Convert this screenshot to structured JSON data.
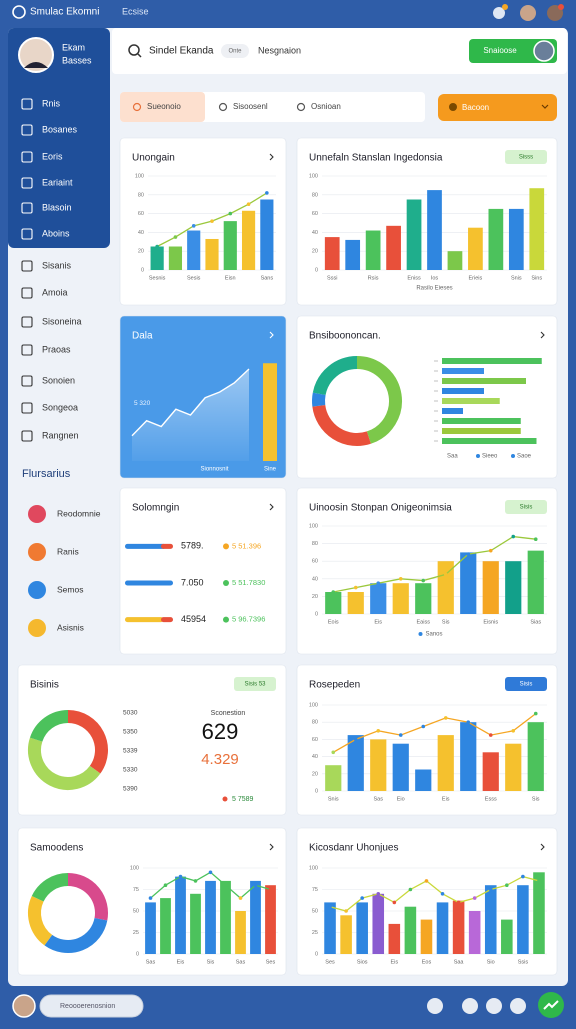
{
  "app": {
    "title": "Smulac Ekomni",
    "subtitle": "Ecsise"
  },
  "profile": {
    "name": "Ekam",
    "role": "Basses"
  },
  "nav": [
    "Rnis",
    "Bosanes",
    "Eoris",
    "Eariaint",
    "Blasoin",
    "Aboins",
    "Sisanis",
    "Amoia",
    "Sisoneina",
    "Praoas",
    "Sonoien",
    "Songeoa",
    "Rangnen"
  ],
  "section": "Flursarius",
  "shortcuts": [
    {
      "label": "Reodomnie",
      "color": "#e0485e"
    },
    {
      "label": "Ranis",
      "color": "#f07a32"
    },
    {
      "label": "Semos",
      "color": "#2f86e0"
    },
    {
      "label": "Asisnis",
      "color": "#f5b82e"
    }
  ],
  "search": {
    "text": "Sindel Ekanda",
    "chip": "Onte",
    "link": "Nesgnaion",
    "button": "Snaioose"
  },
  "filters": [
    "Sueonoio",
    "Sisoosenl",
    "Osnioan"
  ],
  "dropdown": "Bacoon",
  "bottom_search": "Reoooerenosnion",
  "cards": [
    {
      "title": "Unongain",
      "charts": [
        {
          "type": "combo",
          "categories": [
            "Sesnis",
            null,
            "Sesis",
            null,
            "Eisn",
            null,
            "Sans"
          ],
          "values": [
            25,
            25,
            42,
            33,
            52,
            63,
            75
          ],
          "colors": [
            "#1fae8c",
            "#7cc84a",
            "#3a8ee6",
            "#f5c12e",
            "#4cc25c",
            "#f5c12e",
            "#2f86e0"
          ],
          "line": [
            25,
            35,
            47,
            52,
            60,
            70,
            82
          ],
          "line_color": "#9bc83c",
          "ylim": [
            0,
            100
          ],
          "yticks": [
            0,
            20,
            40,
            60,
            80,
            100
          ]
        }
      ]
    },
    {
      "title": "Unnefaln Stanslan Ingedonsia",
      "badge": "Sisss",
      "charts": [
        {
          "type": "combo",
          "categories": [
            "Sssi",
            null,
            "Rsis",
            null,
            "Eniss",
            "Ios",
            null,
            "Erieis",
            null,
            "Snis",
            "Sins"
          ],
          "values": [
            35,
            32,
            42,
            47,
            75,
            85,
            20,
            45,
            65,
            65,
            87
          ],
          "colors": [
            "#e8503a",
            "#2f86e0",
            "#4cc25c",
            "#e8503a",
            "#1fae8c",
            "#2f86e0",
            "#7cc84a",
            "#f5c12e",
            "#4cc25c",
            "#2f86e0",
            "#c9d83a"
          ],
          "ylim": [
            0,
            100
          ],
          "yticks": [
            0,
            20,
            40,
            60,
            80,
            100
          ],
          "xlabel": "Rasilo Eieses"
        }
      ]
    },
    {
      "title": "Dala",
      "background": "#4a9ae8",
      "charts": [
        {
          "type": "area",
          "values": [
            22,
            35,
            30,
            45,
            40,
            55,
            60,
            68,
            80
          ],
          "color": "#ffffff",
          "annotation": "5 320",
          "bar": 85,
          "bar_color": "#f5c12e",
          "labels": [
            "Sionnosnit",
            "Sine"
          ],
          "ylim": [
            0,
            100
          ]
        }
      ]
    },
    {
      "title": "Bnsiboononcan.",
      "charts": [
        {
          "type": "donut",
          "values": [
            45,
            28,
            5,
            22
          ],
          "colors": [
            "#7cc84a",
            "#e8503a",
            "#2f86e0",
            "#1fae8c"
          ]
        },
        {
          "type": "hbar",
          "values": [
            95,
            40,
            80,
            40,
            55,
            20,
            75,
            75,
            90
          ],
          "colors": [
            "#4cc25c",
            "#3a8ee6",
            "#7cc84a",
            "#2f86e0",
            "#a8d85a",
            "#2f86e0",
            "#4cc25c",
            "#9bc83c",
            "#4cc25c"
          ],
          "xlim": [
            0,
            100
          ],
          "labels": [
            "Saa",
            "Sieeo",
            "Saoe"
          ]
        }
      ]
    },
    {
      "title": "Solomngin",
      "charts": [
        {
          "type": "progress",
          "xlim": [
            0,
            100
          ],
          "rows": [
            {
              "value": "5789.",
              "label": "5 51.396",
              "fill": 85,
              "color": "#2f86e0",
              "accent": "#f5a623"
            },
            {
              "value": "7.050",
              "label": "5 51.7830",
              "fill": 100,
              "color": "#2f86e0",
              "accent": "#4cc25c"
            },
            {
              "value": "45954",
              "label": "5 96.7396",
              "fill": 80,
              "color": "#f5c12e",
              "accent": "#4cc25c"
            }
          ]
        }
      ]
    },
    {
      "title": "Uinoosin Stonpan Onigeonimsia",
      "badge": "Sisis",
      "charts": [
        {
          "type": "combo",
          "categories": [
            "Eois",
            null,
            "Eis",
            null,
            "Eaiss",
            "Sis",
            null,
            "Eisnis",
            null,
            "Sias"
          ],
          "values": [
            25,
            25,
            35,
            35,
            35,
            60,
            70,
            60,
            60,
            72
          ],
          "colors": [
            "#4cc25c",
            "#f5c12e",
            "#3a8ee6",
            "#f5c12e",
            "#4cc25c",
            "#f5c12e",
            "#2f86e0",
            "#f5a623",
            "#12a08a",
            "#4cc25c"
          ],
          "line": [
            25,
            30,
            35,
            40,
            38,
            45,
            68,
            72,
            88,
            85
          ],
          "line_color": "#9bc83c",
          "ylim": [
            0,
            100
          ],
          "yticks": [
            0,
            20,
            40,
            60,
            80,
            100
          ],
          "legend": "Sanos"
        }
      ]
    },
    {
      "title": "Bisinis",
      "badge": "Sisis 53",
      "heading": "Sconestion",
      "list": [
        "5030",
        "5350",
        "5339",
        "5330",
        "5390"
      ],
      "big": "629",
      "big2": "4.329",
      "foot": "5 7589",
      "charts": [
        {
          "type": "donut",
          "values": [
            35,
            45,
            20
          ],
          "colors": [
            "#e8503a",
            "#a8d85a",
            "#4cc25c"
          ]
        }
      ]
    },
    {
      "title": "Rosepeden",
      "badge": "Sisis",
      "badge_color": "#2f7ad8",
      "charts": [
        {
          "type": "combo",
          "categories": [
            "Snis",
            null,
            "Sas",
            "Eio",
            null,
            "Eis",
            null,
            "Esss",
            null,
            "Sis"
          ],
          "values": [
            30,
            65,
            60,
            55,
            25,
            65,
            80,
            45,
            55,
            80
          ],
          "colors": [
            "#a8d85a",
            "#2f86e0",
            "#f5c12e",
            "#2f86e0",
            "#2f86e0",
            "#f5c12e",
            "#2f86e0",
            "#e8503a",
            "#f5c12e",
            "#4cc25c"
          ],
          "line": [
            45,
            60,
            70,
            65,
            75,
            85,
            80,
            65,
            70,
            90
          ],
          "line_color": "#f5a623",
          "ylim": [
            0,
            100
          ],
          "yticks": [
            0,
            20,
            40,
            60,
            80,
            100
          ]
        }
      ]
    },
    {
      "title": "Samoodens",
      "charts": [
        {
          "type": "donut",
          "values": [
            28,
            32,
            22,
            18
          ],
          "colors": [
            "#d84a8c",
            "#2f86e0",
            "#f5c12e",
            "#4cc25c"
          ]
        },
        {
          "type": "combo",
          "categories": [
            "Sas",
            null,
            "Eis",
            null,
            "Sis",
            null,
            "Sas",
            null,
            "Ses"
          ],
          "values": [
            60,
            65,
            90,
            70,
            85,
            85,
            50,
            85,
            80
          ],
          "colors": [
            "#2f86e0",
            "#4cc25c",
            "#2f86e0",
            "#4cc25c",
            "#2f86e0",
            "#4cc25c",
            "#f5c12e",
            "#2f86e0",
            "#e8503a"
          ],
          "line": [
            65,
            80,
            90,
            85,
            95,
            80,
            65,
            80,
            75
          ],
          "line_color": "#4cc25c",
          "ylim": [
            0,
            100
          ],
          "yticks": [
            0,
            25,
            50,
            75,
            100
          ]
        }
      ]
    },
    {
      "title": "Kicosdanr Uhonjues",
      "charts": [
        {
          "type": "combo",
          "categories": [
            "Ses",
            null,
            "Sios",
            null,
            "Eis",
            null,
            "Eos",
            null,
            "Saa",
            null,
            "Sio",
            null,
            "Ssis",
            null
          ],
          "values": [
            60,
            45,
            60,
            70,
            35,
            55,
            40,
            60,
            62,
            50,
            80,
            40,
            80,
            95
          ],
          "colors": [
            "#2f86e0",
            "#f5c12e",
            "#2f86e0",
            "#8a5cd0",
            "#e8503a",
            "#4cc25c",
            "#f5a623",
            "#2f86e0",
            "#e8503a",
            "#b868d8",
            "#2f86e0",
            "#4cc25c",
            "#2f86e0",
            "#4cc25c"
          ],
          "line": [
            55,
            50,
            65,
            70,
            60,
            75,
            85,
            70,
            60,
            65,
            75,
            80,
            90,
            85
          ],
          "line_color": "#c9d83a",
          "ylim": [
            0,
            100
          ],
          "yticks": [
            0,
            25,
            50,
            75,
            100
          ]
        }
      ]
    }
  ]
}
